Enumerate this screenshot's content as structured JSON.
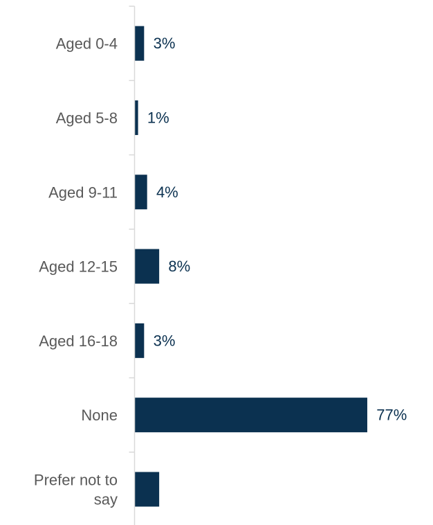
{
  "chart_data": {
    "type": "bar",
    "orientation": "horizontal",
    "categories": [
      [
        "Aged 0-4"
      ],
      [
        "Aged 5-8"
      ],
      [
        "Aged 9-11"
      ],
      [
        "Aged 12-15"
      ],
      [
        "Aged 16-18"
      ],
      [
        "None"
      ],
      [
        "Prefer not to",
        "say"
      ]
    ],
    "values": [
      3,
      1,
      4,
      8,
      3,
      77,
      8
    ],
    "value_labels": [
      "3%",
      "1%",
      "4%",
      "8%",
      "3%",
      "77%",
      ""
    ],
    "xlim": [
      0,
      100
    ],
    "bar_color": "#0b3150",
    "axis_color": "#d9d9d9",
    "label_color": "#595959",
    "value_label_color": "#0b3150",
    "grid": false,
    "legend": "none"
  }
}
